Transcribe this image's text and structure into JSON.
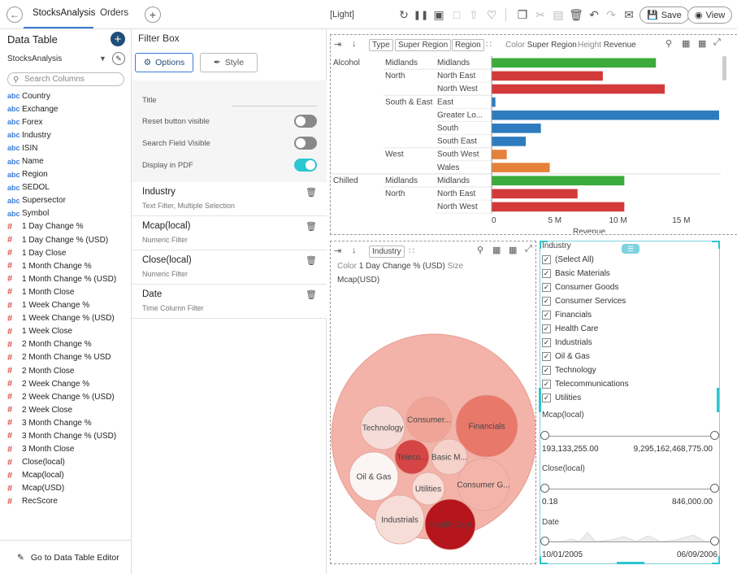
{
  "topbar": {
    "tabs": [
      "StocksAnalysis",
      "Orders"
    ],
    "theme": "[Light]",
    "save_label": "Save",
    "view_label": "View"
  },
  "data_table": {
    "title": "Data Table",
    "source": "StocksAnalysis",
    "search_placeholder": "Search Columns",
    "columns": [
      {
        "type": "abc",
        "name": "Country"
      },
      {
        "type": "abc",
        "name": "Exchange"
      },
      {
        "type": "abc",
        "name": "Forex"
      },
      {
        "type": "abc",
        "name": "Industry"
      },
      {
        "type": "abc",
        "name": "ISIN"
      },
      {
        "type": "abc",
        "name": "Name"
      },
      {
        "type": "abc",
        "name": "Region"
      },
      {
        "type": "abc",
        "name": "SEDOL"
      },
      {
        "type": "abc",
        "name": "Supersector"
      },
      {
        "type": "abc",
        "name": "Symbol"
      },
      {
        "type": "#",
        "name": "1 Day Change %"
      },
      {
        "type": "#",
        "name": "1 Day Change % (USD)"
      },
      {
        "type": "#",
        "name": "1 Day Close"
      },
      {
        "type": "#",
        "name": "1 Month Change %"
      },
      {
        "type": "#",
        "name": "1 Month Change % (USD)"
      },
      {
        "type": "#",
        "name": "1 Month Close"
      },
      {
        "type": "#",
        "name": "1 Week Change %"
      },
      {
        "type": "#",
        "name": "1 Week Change % (USD)"
      },
      {
        "type": "#",
        "name": "1 Week Close"
      },
      {
        "type": "#",
        "name": "2 Month Change %"
      },
      {
        "type": "#",
        "name": "2 Month Change % USD"
      },
      {
        "type": "#",
        "name": "2 Month Close"
      },
      {
        "type": "#",
        "name": "2 Week Change %"
      },
      {
        "type": "#",
        "name": "2 Week Change % (USD)"
      },
      {
        "type": "#",
        "name": "2 Week Close"
      },
      {
        "type": "#",
        "name": "3 Month Change %"
      },
      {
        "type": "#",
        "name": "3 Month Change % (USD)"
      },
      {
        "type": "#",
        "name": "3 Month Close"
      },
      {
        "type": "#",
        "name": "Close(local)"
      },
      {
        "type": "#",
        "name": "Mcap(local)"
      },
      {
        "type": "#",
        "name": "Mcap(USD)"
      },
      {
        "type": "#",
        "name": "RecScore"
      }
    ],
    "goto_editor": "Go to Data Table Editor"
  },
  "filter_box": {
    "title": "Filter Box",
    "options_label": "Options",
    "style_label": "Style",
    "settings": {
      "title_label": "Title",
      "reset_label": "Reset button visible",
      "reset_on": false,
      "search_label": "Search Field Visible",
      "search_on": false,
      "pdf_label": "Display in PDF",
      "pdf_on": true
    },
    "filters": [
      {
        "name": "Industry",
        "sub": "Text Filter, Multiple Selection"
      },
      {
        "name": "Mcap(local)",
        "sub": "Numeric Filter"
      },
      {
        "name": "Close(local)",
        "sub": "Numeric Filter"
      },
      {
        "name": "Date",
        "sub": "Time Column Filter"
      }
    ]
  },
  "bar_panel": {
    "chips": [
      "Type",
      "Super Region",
      "Region"
    ],
    "color_label": "Color",
    "color_value": "Super Region",
    "height_label": "Height",
    "height_value": "Revenue"
  },
  "circle_panel": {
    "chip": "Industry",
    "color_label": "Color",
    "color_value": "1 Day Change % (USD)",
    "size_label": "Size",
    "size_value": "Mcap(USD)"
  },
  "filter_panel": {
    "industry_title": "Industry",
    "industry_options": [
      "(Select All)",
      "Basic Materials",
      "Consumer Goods",
      "Consumer Services",
      "Financials",
      "Health Care",
      "Industrials",
      "Oil & Gas",
      "Technology",
      "Telecommunications",
      "Utilities"
    ],
    "mcap_title": "Mcap(local)",
    "mcap_min": "193,133,255.00",
    "mcap_max": "9,295,162,468,775.00",
    "close_title": "Close(local)",
    "close_min": "0.18",
    "close_max": "846,000.00",
    "date_title": "Date",
    "date_min": "10/01/2005",
    "date_max": "06/09/2006"
  },
  "chart_data": [
    {
      "type": "bar",
      "orientation": "horizontal",
      "xlabel": "Revenue",
      "xticks": [
        "0",
        "5 M",
        "10 M",
        "15 M"
      ],
      "xlim": [
        0,
        18000000
      ],
      "colors": {
        "Midlands": "#3bab3b",
        "North": "#d33a3a",
        "South & East": "#2e7cbf",
        "West": "#e5813a"
      },
      "rows": [
        {
          "type": "Alcohol",
          "super_region": "Midlands",
          "region": "Midlands",
          "value": 13000000
        },
        {
          "type": "",
          "super_region": "North",
          "region": "North East",
          "value": 8800000
        },
        {
          "type": "",
          "super_region": "",
          "region": "North West",
          "value": 13700000
        },
        {
          "type": "",
          "super_region": "South & East",
          "region": "East",
          "value": 300000
        },
        {
          "type": "",
          "super_region": "",
          "region": "Greater Lo...",
          "value": 18000000
        },
        {
          "type": "",
          "super_region": "",
          "region": "South",
          "value": 3900000
        },
        {
          "type": "",
          "super_region": "",
          "region": "South East",
          "value": 2700000
        },
        {
          "type": "",
          "super_region": "West",
          "region": "South West",
          "value": 1200000
        },
        {
          "type": "",
          "super_region": "",
          "region": "Wales",
          "value": 4600000
        },
        {
          "type": "Chilled",
          "super_region": "Midlands",
          "region": "Midlands",
          "value": 10500000
        },
        {
          "type": "",
          "super_region": "North",
          "region": "North East",
          "value": 6800000
        },
        {
          "type": "",
          "super_region": "",
          "region": "North West",
          "value": 10500000
        }
      ]
    },
    {
      "type": "bubble",
      "title": "Industry",
      "items": [
        {
          "label": "Technology",
          "color": "#f5dcd8"
        },
        {
          "label": "Consumer...",
          "color": "#f0a497"
        },
        {
          "label": "Financials",
          "color": "#e8786a"
        },
        {
          "label": "Teleco...",
          "color": "#d64545"
        },
        {
          "label": "Basic M...",
          "color": "#f5d1ca"
        },
        {
          "label": "Oil & Gas",
          "color": "#fbf5f4"
        },
        {
          "label": "Utilities",
          "color": "#f8dcd6"
        },
        {
          "label": "Consumer G...",
          "color": "#f3b5aa"
        },
        {
          "label": "Industrials",
          "color": "#f6ddd8"
        },
        {
          "label": "Health Care",
          "color": "#b5151c"
        }
      ]
    }
  ]
}
